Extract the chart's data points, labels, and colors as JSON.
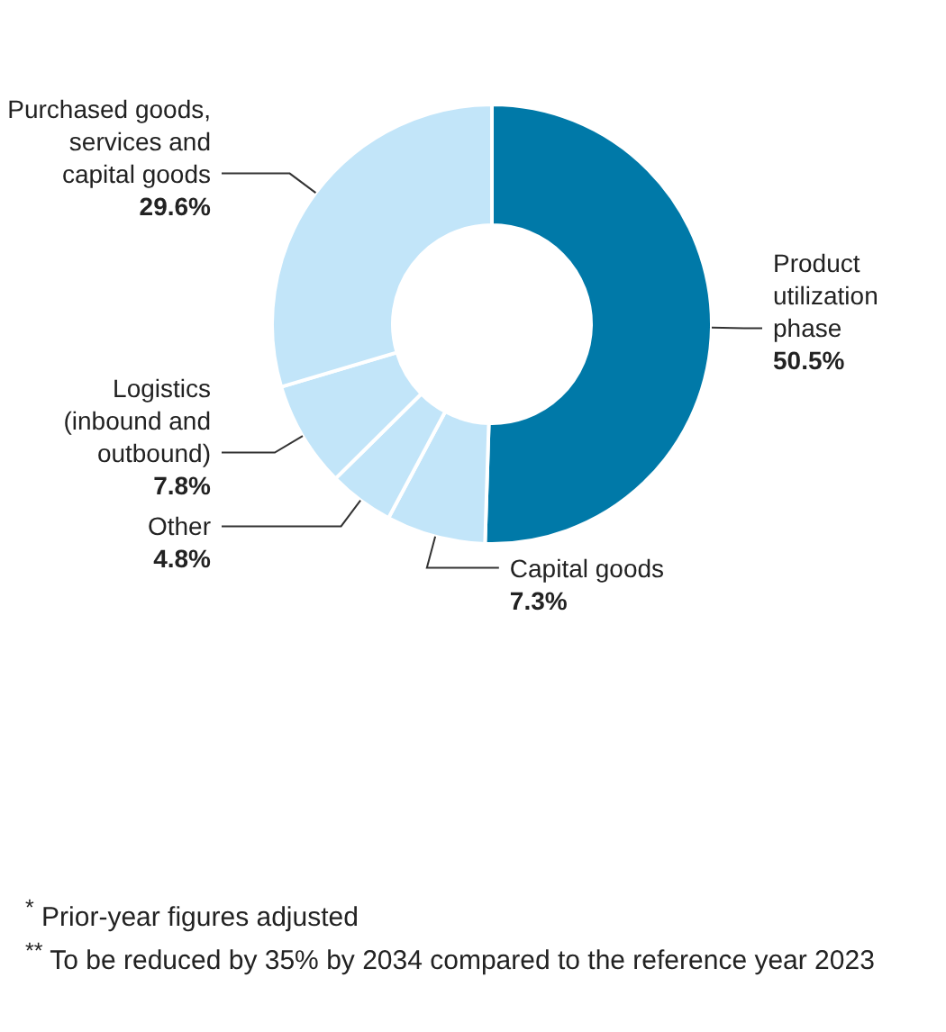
{
  "chart_data": {
    "type": "donut",
    "categories": [
      "Product utilization phase",
      "Capital goods",
      "Other",
      "Logistics (inbound and outbound)",
      "Purchased goods, services and capital goods"
    ],
    "values": [
      50.5,
      7.3,
      4.8,
      7.8,
      29.6
    ],
    "value_labels": [
      "50.5%",
      "7.3%",
      "4.8%",
      "7.8%",
      "29.6%"
    ],
    "colors": [
      "#0079a8",
      "#c2e5f9",
      "#c2e5f9",
      "#c2e5f9",
      "#c2e5f9"
    ],
    "legend": false,
    "annotations": [
      "$^{*}$ Prior-year figures adjusted",
      "$^{**}$ To be reduced by 35% by 2034 compared to the reference year 2023"
    ]
  }
}
